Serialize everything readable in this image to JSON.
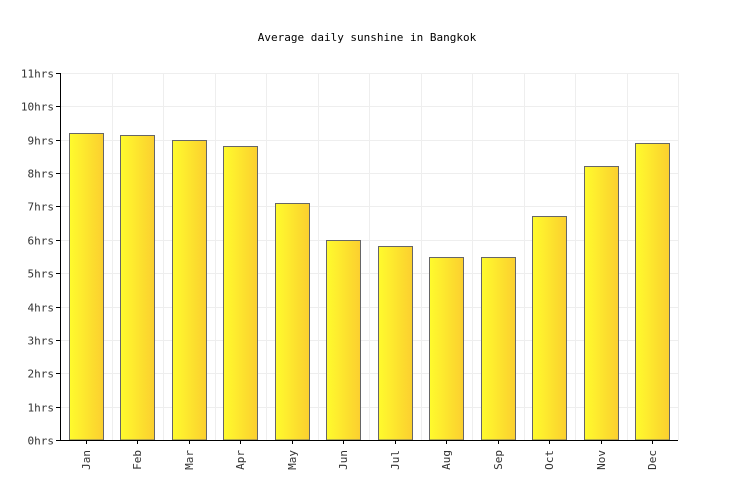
{
  "chart_data": {
    "type": "bar",
    "title": "Average daily sunshine in Bangkok",
    "xlabel": "",
    "ylabel": "",
    "categories": [
      "Jan",
      "Feb",
      "Mar",
      "Apr",
      "May",
      "Jun",
      "Jul",
      "Aug",
      "Sep",
      "Oct",
      "Nov",
      "Dec"
    ],
    "values": [
      9.2,
      9.15,
      9.0,
      8.8,
      7.1,
      6.0,
      5.8,
      5.5,
      5.5,
      6.7,
      8.2,
      8.9
    ],
    "ylim": [
      0,
      11
    ],
    "y_ticks": [
      0,
      1,
      2,
      3,
      4,
      5,
      6,
      7,
      8,
      9,
      10,
      11
    ],
    "y_tick_labels": [
      "0hrs",
      "1hrs",
      "2hrs",
      "3hrs",
      "4hrs",
      "5hrs",
      "6hrs",
      "7hrs",
      "8hrs",
      "9hrs",
      "10hrs",
      "11hrs"
    ],
    "grid": true,
    "legend": "none",
    "colors": {
      "bar_light": "#fffb2d",
      "bar_dark": "#fbcf2f",
      "bar_stroke": "#666666",
      "grid": "#eeeeee",
      "axis": "#000000"
    }
  }
}
